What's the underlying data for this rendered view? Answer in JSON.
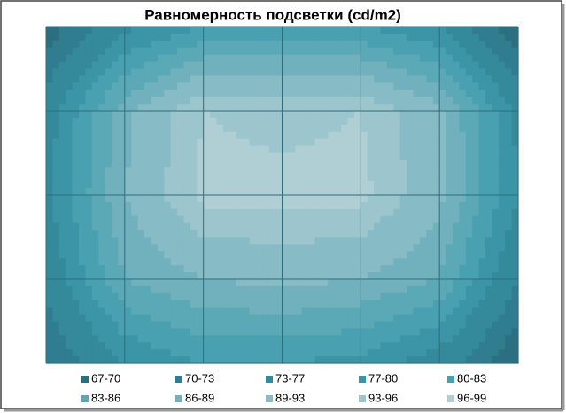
{
  "chart_data": {
    "type": "contour",
    "title": "Равномерность подсветки (cd/m2)",
    "levels": [
      67,
      70,
      73,
      77,
      80,
      83,
      86,
      89,
      93,
      96,
      99
    ],
    "series": [
      {
        "name": "67-70",
        "color": "#2b6f80"
      },
      {
        "name": "70-73",
        "color": "#2f7d8e"
      },
      {
        "name": "73-77",
        "color": "#34899a"
      },
      {
        "name": "77-80",
        "color": "#3b95a6"
      },
      {
        "name": "80-83",
        "color": "#49a0b0"
      },
      {
        "name": "83-86",
        "color": "#5ba8b7"
      },
      {
        "name": "86-89",
        "color": "#71b1bd"
      },
      {
        "name": "89-93",
        "color": "#87bbc5"
      },
      {
        "name": "93-96",
        "color": "#9cc5cd"
      },
      {
        "name": "96-99",
        "color": "#b0cfd5"
      }
    ],
    "z": [
      [
        68,
        76,
        80,
        81,
        80,
        77,
        67
      ],
      [
        75,
        88,
        96,
        95,
        96,
        90,
        76
      ],
      [
        76,
        89,
        97,
        97,
        97,
        90,
        77
      ],
      [
        74,
        86,
        89,
        90,
        89,
        86,
        73
      ],
      [
        70,
        77,
        80,
        80,
        79,
        75,
        67
      ]
    ]
  }
}
